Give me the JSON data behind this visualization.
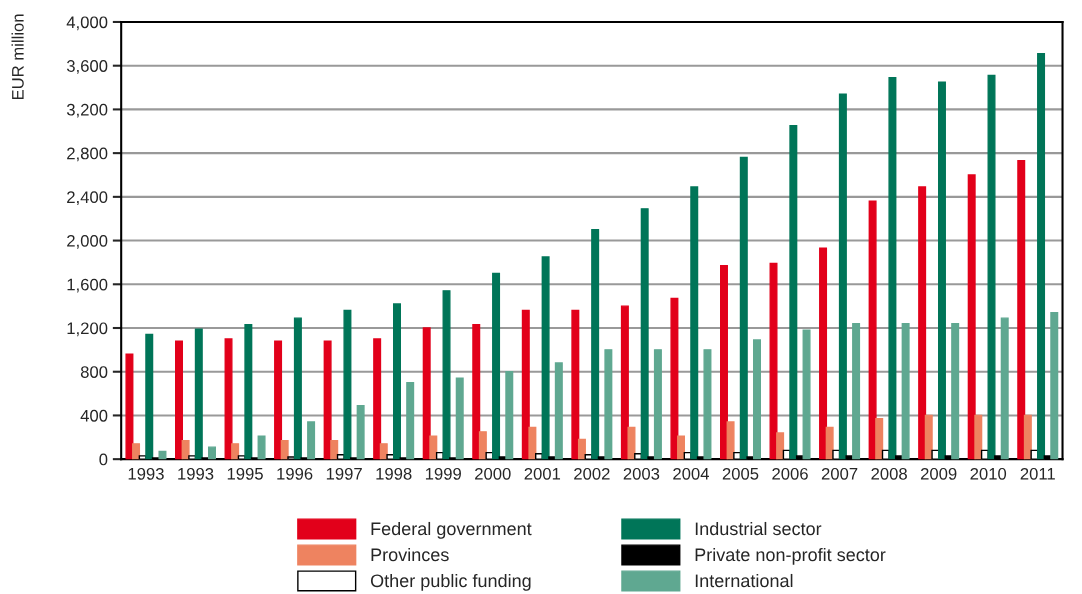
{
  "chart_data": {
    "type": "bar",
    "ylabel": "EUR million",
    "categories": [
      "1993",
      "1993",
      "1995",
      "1996",
      "1997",
      "1998",
      "1999",
      "2000",
      "2001",
      "2002",
      "2003",
      "2004",
      "2005",
      "2006",
      "2007",
      "2008",
      "2009",
      "2010",
      "2011"
    ],
    "series": [
      {
        "name": "Federal government",
        "color": "#e2001a",
        "values": [
          960,
          1080,
          1100,
          1080,
          1080,
          1100,
          1200,
          1230,
          1360,
          1360,
          1400,
          1470,
          1770,
          1790,
          1930,
          2360,
          2490,
          2600,
          2730
        ]
      },
      {
        "name": "Provinces",
        "color": "#ee8360",
        "values": [
          140,
          170,
          140,
          170,
          170,
          140,
          210,
          250,
          290,
          180,
          290,
          210,
          340,
          240,
          290,
          370,
          400,
          400,
          400
        ]
      },
      {
        "name": "Other public funding",
        "color": "#ffffff",
        "values": [
          30,
          30,
          30,
          20,
          40,
          40,
          60,
          60,
          50,
          40,
          50,
          60,
          60,
          80,
          80,
          80,
          80,
          80,
          80
        ]
      },
      {
        "name": "Industrial sector",
        "color": "#007558",
        "values": [
          1140,
          1190,
          1230,
          1290,
          1360,
          1420,
          1540,
          1700,
          1850,
          2100,
          2290,
          2490,
          2760,
          3050,
          3340,
          3490,
          3450,
          3510,
          3710
        ]
      },
      {
        "name": "Private non-profit sector",
        "color": "#000000",
        "values": [
          10,
          10,
          10,
          10,
          10,
          10,
          10,
          20,
          20,
          20,
          20,
          20,
          20,
          30,
          30,
          30,
          30,
          30,
          30
        ]
      },
      {
        "name": "International",
        "color": "#5fa891",
        "values": [
          70,
          110,
          210,
          340,
          490,
          700,
          740,
          800,
          880,
          1000,
          1000,
          1000,
          1090,
          1180,
          1240,
          1240,
          1240,
          1290,
          1340
        ]
      }
    ],
    "ylim": [
      0,
      4000
    ],
    "yticks": [
      0,
      {
        "value": 400,
        "label": "400"
      },
      {
        "value": 800,
        "label": "800"
      },
      {
        "value": 1200,
        "label": "1,200"
      },
      {
        "value": 1600,
        "label": "1,600"
      },
      {
        "value": 2000,
        "label": "2,000"
      },
      {
        "value": 2400,
        "label": "2,400"
      },
      {
        "value": 2800,
        "label": "2,800"
      },
      {
        "value": 3200,
        "label": "3,200"
      },
      {
        "value": 3600,
        "label": "3,600"
      },
      {
        "value": 4000,
        "label": "4,000"
      }
    ],
    "grid": "y",
    "legend": "bottom"
  }
}
